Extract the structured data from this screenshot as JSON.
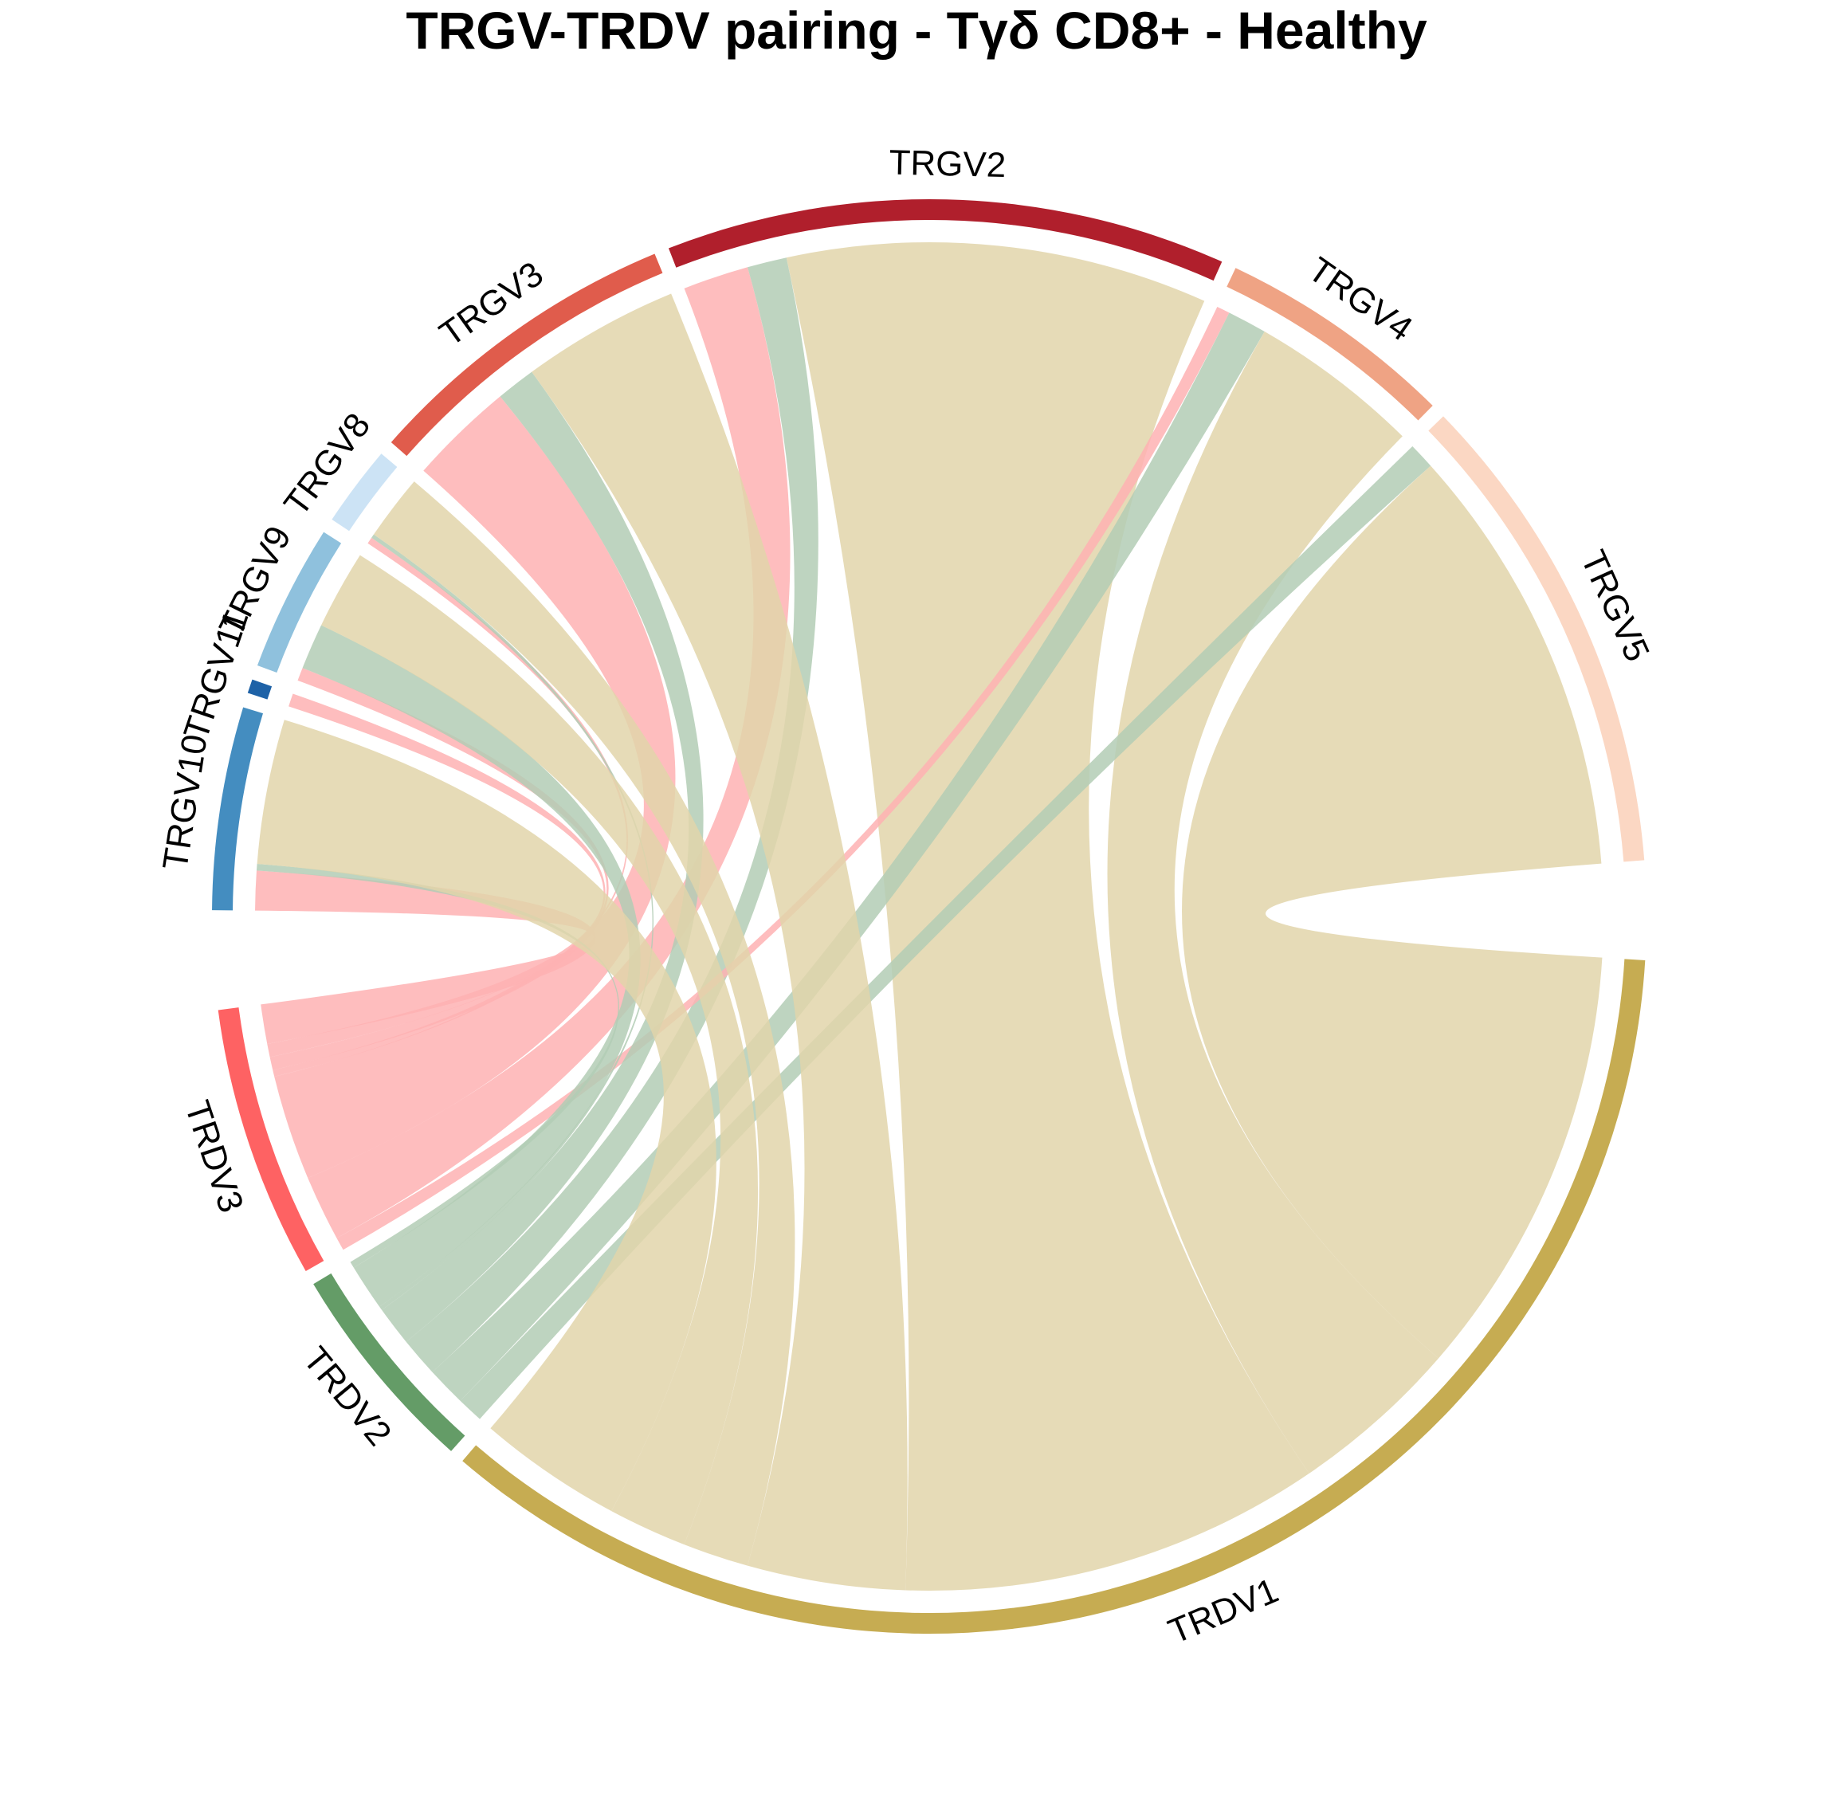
{
  "chart_data": {
    "type": "chord",
    "title": "TRGV-TRDV pairing - Tγδ CD8+ - Healthy",
    "sectors": [
      {
        "name": "TRGV2",
        "group": "TRGV",
        "color": "#B01F2C"
      },
      {
        "name": "TRGV4",
        "group": "TRGV",
        "color": "#EFA384"
      },
      {
        "name": "TRGV5",
        "group": "TRGV",
        "color": "#FBD7C3"
      },
      {
        "name": "TRDV1",
        "group": "TRDV",
        "color": "#C6AC52"
      },
      {
        "name": "TRDV2",
        "group": "TRDV",
        "color": "#649C67"
      },
      {
        "name": "TRDV3",
        "group": "TRDV",
        "color": "#FE6263"
      },
      {
        "name": "TRGV10",
        "group": "TRGV",
        "color": "#448DC0"
      },
      {
        "name": "TRGV11",
        "group": "TRGV",
        "color": "#1E62A7"
      },
      {
        "name": "TRGV9",
        "group": "TRGV",
        "color": "#8FC1DD"
      },
      {
        "name": "TRGV8",
        "group": "TRGV",
        "color": "#CCE3F5"
      },
      {
        "name": "TRGV3",
        "group": "TRGV",
        "color": "#E05C4C"
      }
    ],
    "links": [
      {
        "from": "TRGV2",
        "to": "TRDV3",
        "value": 5
      },
      {
        "from": "TRGV2",
        "to": "TRDV2",
        "value": 3
      },
      {
        "from": "TRGV2",
        "to": "TRDV1",
        "value": 32
      },
      {
        "from": "TRGV4",
        "to": "TRDV3",
        "value": 1
      },
      {
        "from": "TRGV4",
        "to": "TRDV2",
        "value": 3
      },
      {
        "from": "TRGV4",
        "to": "TRDV1",
        "value": 13
      },
      {
        "from": "TRGV5",
        "to": "TRDV2",
        "value": 2
      },
      {
        "from": "TRGV5",
        "to": "TRDV1",
        "value": 33
      },
      {
        "from": "TRGV3",
        "to": "TRDV3",
        "value": 8
      },
      {
        "from": "TRGV3",
        "to": "TRDV2",
        "value": 3
      },
      {
        "from": "TRGV3",
        "to": "TRDV1",
        "value": 12
      },
      {
        "from": "TRGV8",
        "to": "TRDV3",
        "value": 0.5
      },
      {
        "from": "TRGV8",
        "to": "TRDV2",
        "value": 0.3
      },
      {
        "from": "TRGV8",
        "to": "TRDV1",
        "value": 5
      },
      {
        "from": "TRGV9",
        "to": "TRDV3",
        "value": 1
      },
      {
        "from": "TRGV9",
        "to": "TRDV2",
        "value": 3.5
      },
      {
        "from": "TRGV9",
        "to": "TRDV1",
        "value": 6
      },
      {
        "from": "TRGV11",
        "to": "TRDV3",
        "value": 1
      },
      {
        "from": "TRGV10",
        "to": "TRDV3",
        "value": 3
      },
      {
        "from": "TRGV10",
        "to": "TRDV2",
        "value": 0.5
      },
      {
        "from": "TRGV10",
        "to": "TRDV1",
        "value": 11
      }
    ]
  }
}
